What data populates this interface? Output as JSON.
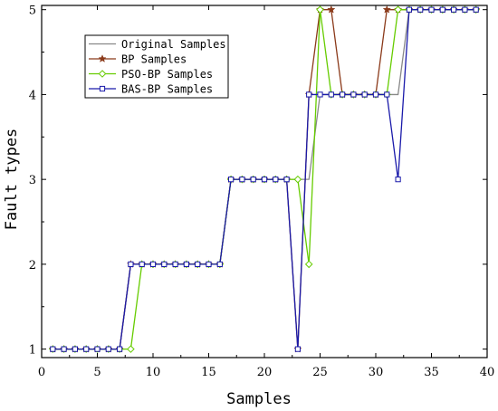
{
  "chart_data": {
    "type": "line",
    "xlabel": "Samples",
    "ylabel": "Fault types",
    "xlim": [
      0,
      40
    ],
    "ylim": [
      0.9,
      5.05
    ],
    "xticks": [
      0,
      5,
      10,
      15,
      20,
      25,
      30,
      35,
      40
    ],
    "yticks": [
      1,
      2,
      3,
      4,
      5
    ],
    "grid": false,
    "legend_position": "top-left",
    "x": [
      1,
      2,
      3,
      4,
      5,
      6,
      7,
      8,
      9,
      10,
      11,
      12,
      13,
      14,
      15,
      16,
      17,
      18,
      19,
      20,
      21,
      22,
      23,
      24,
      25,
      26,
      27,
      28,
      29,
      30,
      31,
      32,
      33,
      34,
      35,
      36,
      37,
      38,
      39
    ],
    "series": [
      {
        "name": "Original Samples",
        "color": "#888888",
        "marker": "none",
        "values": [
          1,
          1,
          1,
          1,
          1,
          1,
          1,
          2,
          2,
          2,
          2,
          2,
          2,
          2,
          2,
          2,
          3,
          3,
          3,
          3,
          3,
          3,
          3,
          3,
          4,
          4,
          4,
          4,
          4,
          4,
          4,
          4,
          5,
          5,
          5,
          5,
          5,
          5,
          5
        ]
      },
      {
        "name": "BP Samples",
        "color": "#8b3a1a",
        "marker": "star",
        "values": [
          1,
          1,
          1,
          1,
          1,
          1,
          1,
          2,
          2,
          2,
          2,
          2,
          2,
          2,
          2,
          2,
          3,
          3,
          3,
          3,
          3,
          3,
          1,
          4,
          5,
          5,
          4,
          4,
          4,
          4,
          5,
          5,
          5,
          5,
          5,
          5,
          5,
          5,
          5
        ]
      },
      {
        "name": "PSO-BP Samples",
        "color": "#66cc00",
        "marker": "diamond",
        "values": [
          1,
          1,
          1,
          1,
          1,
          1,
          1,
          1,
          2,
          2,
          2,
          2,
          2,
          2,
          2,
          2,
          3,
          3,
          3,
          3,
          3,
          3,
          3,
          2,
          5,
          4,
          4,
          4,
          4,
          4,
          4,
          5,
          5,
          5,
          5,
          5,
          5,
          5,
          5
        ]
      },
      {
        "name": "BAS-BP Samples",
        "color": "#1a1aaa",
        "marker": "square",
        "values": [
          1,
          1,
          1,
          1,
          1,
          1,
          1,
          2,
          2,
          2,
          2,
          2,
          2,
          2,
          2,
          2,
          3,
          3,
          3,
          3,
          3,
          3,
          1,
          4,
          4,
          4,
          4,
          4,
          4,
          4,
          4,
          3,
          5,
          5,
          5,
          5,
          5,
          5,
          5
        ]
      }
    ]
  }
}
